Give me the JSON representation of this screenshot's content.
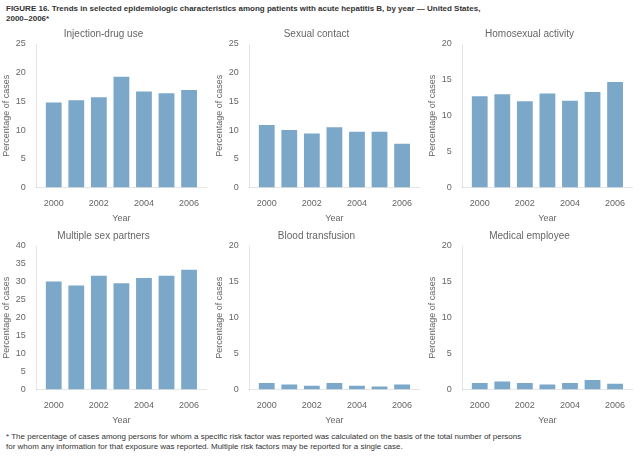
{
  "title": "FIGURE 16. Trends in selected epidemiologic characteristics among patients with acute hepatitis B, by year — United States,\n2000–2006*",
  "annotations": [
    "* The percentage of cases among persons for whom a specific risk factor was reported was calculated on the basis of the total number of persons\nfor whom any information for that exposure was reported. Multiple risk factors may be reported for a single case."
  ],
  "chart_data": [
    {
      "type": "bar",
      "title": "Injection-drug use",
      "x": [
        2000,
        2001,
        2002,
        2003,
        2004,
        2005,
        2006
      ],
      "values": [
        14.8,
        15.2,
        15.7,
        19.3,
        16.7,
        16.4,
        17.0
      ],
      "color": "#7ba7c9",
      "xlim": [
        1999.25,
        2006.75
      ],
      "xticks": [
        2000,
        2002,
        2004,
        2006
      ],
      "ylim": [
        0,
        25
      ],
      "yticks": [
        0,
        5,
        10,
        15,
        20,
        25
      ],
      "xlabel": "Year",
      "ylabel": "Percentage of cases",
      "grid": false
    },
    {
      "type": "bar",
      "title": "Sexual contact",
      "x": [
        2000,
        2001,
        2002,
        2003,
        2004,
        2005,
        2006
      ],
      "values": [
        10.9,
        10.0,
        9.4,
        10.5,
        9.7,
        9.7,
        7.6
      ],
      "color": "#7ba7c9",
      "xlim": [
        1999.25,
        2006.75
      ],
      "xticks": [
        2000,
        2002,
        2004,
        2006
      ],
      "ylim": [
        0,
        25
      ],
      "yticks": [
        0,
        5,
        10,
        15,
        20,
        25
      ],
      "xlabel": "Year",
      "ylabel": "Percentage of cases",
      "grid": false
    },
    {
      "type": "bar",
      "title": "Homosexual activity",
      "x": [
        2000,
        2001,
        2002,
        2003,
        2004,
        2005,
        2006
      ],
      "values": [
        12.7,
        13.0,
        12.0,
        13.1,
        12.1,
        13.3,
        14.7
      ],
      "color": "#7ba7c9",
      "xlim": [
        1999.25,
        2006.75
      ],
      "xticks": [
        2000,
        2002,
        2004,
        2006
      ],
      "ylim": [
        0,
        20
      ],
      "yticks": [
        0,
        5,
        10,
        15,
        20
      ],
      "xlabel": "Year",
      "ylabel": "Percentage of cases",
      "grid": false
    },
    {
      "type": "bar",
      "title": "Multiple sex partners",
      "x": [
        2000,
        2001,
        2002,
        2003,
        2004,
        2005,
        2006
      ],
      "values": [
        30.1,
        29.0,
        31.7,
        29.6,
        31.1,
        31.7,
        33.4
      ],
      "color": "#7ba7c9",
      "xlim": [
        1999.25,
        2006.75
      ],
      "xticks": [
        2000,
        2002,
        2004,
        2006
      ],
      "ylim": [
        0,
        40
      ],
      "yticks": [
        0,
        5,
        10,
        15,
        20,
        25,
        30,
        35,
        40
      ],
      "xlabel": "Year",
      "ylabel": "Percentage of cases",
      "grid": false
    },
    {
      "type": "bar",
      "title": "Blood transfusion",
      "x": [
        2000,
        2001,
        2002,
        2003,
        2004,
        2005,
        2006
      ],
      "values": [
        0.9,
        0.7,
        0.5,
        0.9,
        0.5,
        0.4,
        0.7
      ],
      "color": "#7ba7c9",
      "xlim": [
        1999.25,
        2006.75
      ],
      "xticks": [
        2000,
        2002,
        2004,
        2006
      ],
      "ylim": [
        0,
        20
      ],
      "yticks": [
        0,
        5,
        10,
        15,
        20
      ],
      "xlabel": "Year",
      "ylabel": "Percentage of cases",
      "grid": false
    },
    {
      "type": "bar",
      "title": "Medical employee",
      "x": [
        2000,
        2001,
        2002,
        2003,
        2004,
        2005,
        2006
      ],
      "values": [
        0.9,
        1.1,
        0.9,
        0.7,
        0.9,
        1.3,
        0.8
      ],
      "color": "#7ba7c9",
      "xlim": [
        1999.25,
        2006.75
      ],
      "xticks": [
        2000,
        2002,
        2004,
        2006
      ],
      "ylim": [
        0,
        20
      ],
      "yticks": [
        0,
        5,
        10,
        15,
        20
      ],
      "xlabel": "Year",
      "ylabel": "Percentage of cases",
      "grid": false
    }
  ]
}
